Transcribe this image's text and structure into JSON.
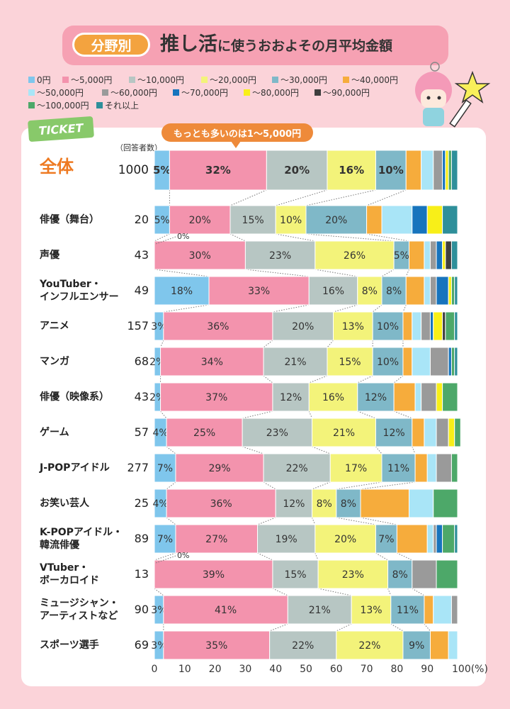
{
  "header": {
    "tag": "分野別",
    "title_main": "推し活",
    "title_rest": "に使うおおよその月平均金額"
  },
  "ticket_label": "TICKET",
  "callout": "もっとも多いのは1～5,000円",
  "respondents_header": "（回答者数）",
  "zero_note": "0%",
  "colors": {
    "background": "#fbd3d9",
    "title_band": "#f6a1b3",
    "tag": "#f3a33f",
    "accent_orange": "#ee7a22"
  },
  "chart_data": {
    "type": "bar",
    "orientation": "horizontal-stacked-100",
    "xlim": [
      0,
      100
    ],
    "x_ticks": [
      "0",
      "10",
      "20",
      "30",
      "40",
      "50",
      "60",
      "70",
      "80",
      "90",
      "100(%)"
    ],
    "series": [
      {
        "name": "0円",
        "color": "#7fc6ec"
      },
      {
        "name": "～5,000円",
        "color": "#f393ad"
      },
      {
        "name": "～10,000円",
        "color": "#b7c6c3"
      },
      {
        "name": "～20,000円",
        "color": "#f3f37a"
      },
      {
        "name": "～30,000円",
        "color": "#7fb8c8"
      },
      {
        "name": "～40,000円",
        "color": "#f6ac3c"
      },
      {
        "name": "～50,000円",
        "color": "#a9e5f7"
      },
      {
        "name": "～60,000円",
        "color": "#9a9a9a"
      },
      {
        "name": "～70,000円",
        "color": "#1774bd"
      },
      {
        "name": "～80,000円",
        "color": "#f8ef18"
      },
      {
        "name": "～90,000円",
        "color": "#3e3e3e"
      },
      {
        "name": "～100,000円",
        "color": "#4da869"
      },
      {
        "name": "それ以上",
        "color": "#2e8f9a"
      }
    ],
    "categories": [
      {
        "label": [
          "全体"
        ],
        "n": "1000",
        "values": [
          5,
          32,
          20,
          16,
          10,
          5,
          4,
          3,
          1,
          1,
          0,
          1,
          2
        ],
        "labels": [
          "5%",
          "32%",
          "20%",
          "16%",
          "10%",
          "",
          "",
          "",
          "",
          "",
          "",
          "",
          ""
        ]
      },
      {
        "label": [
          "俳優（舞台）"
        ],
        "n": "20",
        "values": [
          5,
          20,
          15,
          10,
          20,
          5,
          10,
          0,
          5,
          5,
          0,
          0,
          5
        ],
        "labels": [
          "5%",
          "20%",
          "15%",
          "10%",
          "20%",
          "",
          "",
          "",
          "",
          "",
          "",
          "",
          ""
        ]
      },
      {
        "label": [
          "声優"
        ],
        "n": "43",
        "values": [
          0,
          30,
          23,
          26,
          5,
          5,
          2,
          2,
          2,
          1,
          2,
          0,
          2
        ],
        "labels": [
          "",
          "30%",
          "23%",
          "26%",
          "5%",
          "",
          "",
          "",
          "",
          "",
          "",
          "",
          ""
        ]
      },
      {
        "label": [
          "YouTuber・",
          "インフルエンサー"
        ],
        "n": "49",
        "values": [
          18,
          33,
          16,
          8,
          8,
          6,
          2,
          2,
          4,
          1,
          0,
          1,
          1
        ],
        "labels": [
          "18%",
          "33%",
          "16%",
          "8%",
          "8%",
          "",
          "",
          "",
          "",
          "",
          "",
          "",
          ""
        ]
      },
      {
        "label": [
          "アニメ"
        ],
        "n": "157",
        "values": [
          3,
          36,
          20,
          13,
          10,
          3,
          3,
          3,
          1,
          3,
          1,
          3,
          1
        ],
        "labels": [
          "3%",
          "36%",
          "20%",
          "13%",
          "10%",
          "",
          "",
          "",
          "",
          "",
          "",
          "",
          ""
        ]
      },
      {
        "label": [
          "マンガ"
        ],
        "n": "68",
        "values": [
          2,
          34,
          21,
          15,
          10,
          3,
          6,
          6,
          1,
          0,
          0,
          1,
          1
        ],
        "labels": [
          "2%",
          "34%",
          "21%",
          "15%",
          "10%",
          "",
          "",
          "",
          "",
          "",
          "",
          "",
          ""
        ]
      },
      {
        "label": [
          "俳優（映像系）"
        ],
        "n": "43",
        "values": [
          2,
          37,
          12,
          16,
          12,
          7,
          2,
          5,
          0,
          2,
          0,
          5,
          0
        ],
        "labels": [
          "2%",
          "37%",
          "12%",
          "16%",
          "12%",
          "",
          "",
          "",
          "",
          "",
          "",
          "",
          ""
        ]
      },
      {
        "label": [
          "ゲーム"
        ],
        "n": "57",
        "values": [
          4,
          25,
          23,
          21,
          12,
          4,
          4,
          4,
          0,
          2,
          0,
          2,
          0
        ],
        "labels": [
          "4%",
          "25%",
          "23%",
          "21%",
          "12%",
          "",
          "",
          "",
          "",
          "",
          "",
          "",
          ""
        ]
      },
      {
        "label": [
          "J-POPアイドル"
        ],
        "n": "277",
        "values": [
          7,
          29,
          22,
          17,
          11,
          4,
          3,
          5,
          0,
          0,
          0,
          2,
          0
        ],
        "labels": [
          "7%",
          "29%",
          "22%",
          "17%",
          "11%",
          "",
          "",
          "",
          "",
          "",
          "",
          "",
          ""
        ]
      },
      {
        "label": [
          "お笑い芸人"
        ],
        "n": "25",
        "values": [
          4,
          36,
          12,
          8,
          8,
          16,
          8,
          0,
          0,
          0,
          0,
          8,
          0
        ],
        "labels": [
          "4%",
          "36%",
          "12%",
          "8%",
          "8%",
          "",
          "",
          "",
          "",
          "",
          "",
          "",
          ""
        ]
      },
      {
        "label": [
          "K-POPアイドル・",
          "韓流俳優"
        ],
        "n": "89",
        "values": [
          7,
          27,
          19,
          20,
          7,
          10,
          2,
          1,
          2,
          0,
          0,
          4,
          1
        ],
        "labels": [
          "7%",
          "27%",
          "19%",
          "20%",
          "7%",
          "",
          "",
          "",
          "",
          "",
          "",
          "",
          ""
        ]
      },
      {
        "label": [
          "VTuber・",
          "ボーカロイド"
        ],
        "n": "13",
        "values": [
          0,
          39,
          15,
          23,
          8,
          0,
          0,
          8,
          0,
          0,
          0,
          7,
          0
        ],
        "labels": [
          "",
          "39%",
          "15%",
          "23%",
          "8%",
          "",
          "",
          "",
          "",
          "",
          "",
          "",
          ""
        ]
      },
      {
        "label": [
          "ミュージシャン・",
          "アーティストなど"
        ],
        "n": "90",
        "values": [
          3,
          41,
          21,
          13,
          11,
          3,
          6,
          2,
          0,
          0,
          0,
          0,
          0
        ],
        "labels": [
          "3%",
          "41%",
          "21%",
          "13%",
          "11%",
          "",
          "",
          "",
          "",
          "",
          "",
          "",
          ""
        ]
      },
      {
        "label": [
          "スポーツ選手"
        ],
        "n": "69",
        "values": [
          3,
          35,
          22,
          22,
          9,
          6,
          3,
          0,
          0,
          0,
          0,
          0,
          0
        ],
        "labels": [
          "3%",
          "35%",
          "22%",
          "22%",
          "9%",
          "",
          "",
          "",
          "",
          "",
          "",
          "",
          ""
        ]
      }
    ]
  }
}
